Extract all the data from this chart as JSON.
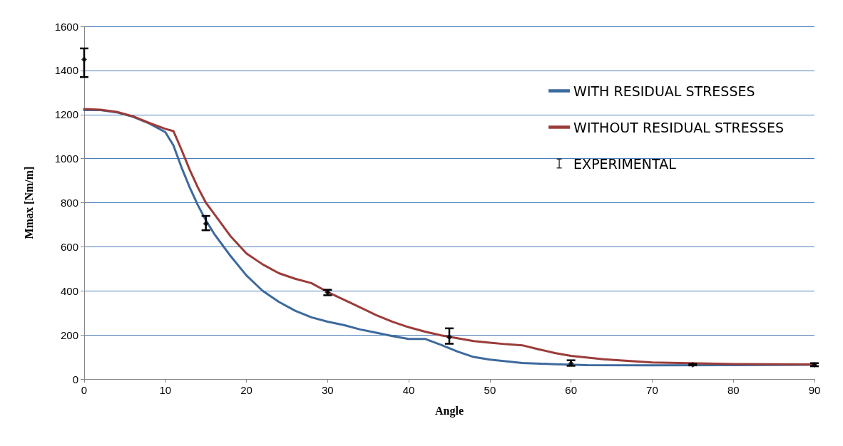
{
  "chart_data": {
    "type": "line",
    "xlabel": "Angle",
    "ylabel": "Mmax [Nm/m]",
    "xlim": [
      0,
      90
    ],
    "xticks": [
      0,
      10,
      20,
      30,
      40,
      50,
      60,
      70,
      80,
      90
    ],
    "ylim": [
      0,
      1600
    ],
    "yticks": [
      0,
      200,
      400,
      600,
      800,
      1000,
      1200,
      1400,
      1600
    ],
    "grid": "y",
    "legend": "top right",
    "line_style": "solid",
    "series": [
      {
        "name": "WITH RESIDUAL STRESSES",
        "color": "#3d6a9e",
        "x": [
          0,
          2,
          4,
          6,
          8,
          10,
          11,
          12,
          13,
          14,
          15,
          16,
          18,
          20,
          22,
          24,
          26,
          28,
          30,
          32,
          34,
          36,
          38,
          40,
          42,
          44,
          46,
          48,
          50,
          54,
          58,
          62,
          70,
          80,
          90
        ],
        "values": [
          1220,
          1220,
          1210,
          1190,
          1160,
          1120,
          1060,
          960,
          870,
          790,
          720,
          660,
          560,
          470,
          400,
          350,
          310,
          280,
          260,
          245,
          225,
          210,
          195,
          182,
          182,
          155,
          125,
          100,
          88,
          73,
          67,
          63,
          62,
          63,
          65
        ]
      },
      {
        "name": "WITHOUT RESIDUAL STRESSES",
        "color": "#9b3c3a",
        "x": [
          0,
          2,
          4,
          6,
          8,
          10,
          11,
          12,
          13,
          14,
          15,
          16,
          18,
          20,
          22,
          24,
          26,
          28,
          30,
          32,
          34,
          36,
          38,
          40,
          42,
          44,
          46,
          48,
          50,
          52,
          54,
          56,
          58,
          60,
          64,
          70,
          80,
          90
        ],
        "values": [
          1225,
          1222,
          1212,
          1192,
          1162,
          1135,
          1125,
          1040,
          950,
          870,
          800,
          750,
          650,
          570,
          520,
          480,
          455,
          435,
          395,
          360,
          325,
          290,
          260,
          235,
          215,
          198,
          185,
          172,
          165,
          158,
          153,
          135,
          118,
          105,
          90,
          75,
          68,
          66
        ]
      },
      {
        "name": "EXPERIMENTAL",
        "type": "scatter",
        "marker": "diamond",
        "color": "#000000",
        "x": [
          0,
          15,
          30,
          45,
          60,
          75,
          90
        ],
        "values": [
          1450,
          705,
          393,
          190,
          70,
          65,
          65
        ],
        "errors": [
          [
            1370,
            1500
          ],
          [
            675,
            740
          ],
          [
            380,
            405
          ],
          [
            160,
            230
          ],
          [
            60,
            85
          ],
          [
            62,
            68
          ],
          [
            58,
            72
          ]
        ]
      }
    ]
  }
}
